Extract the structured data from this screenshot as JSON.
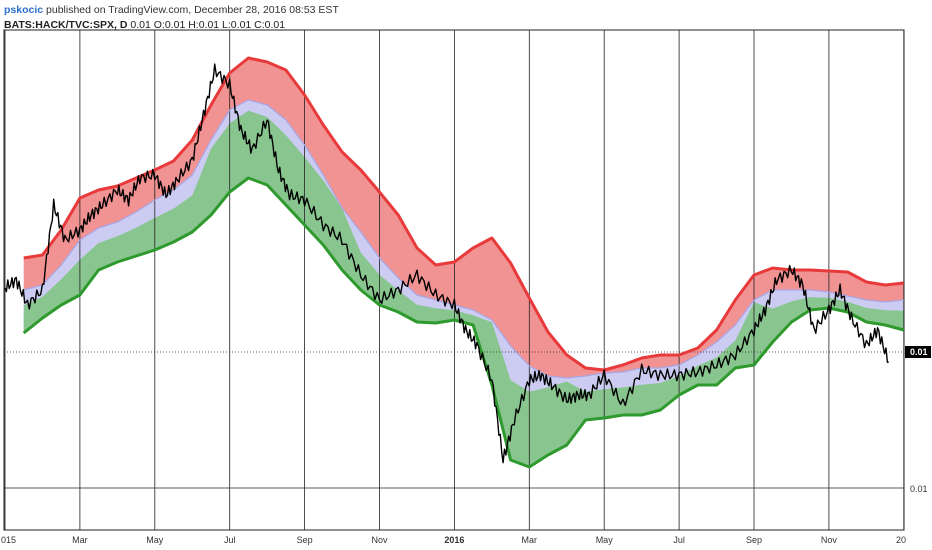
{
  "header": {
    "author": "pskocic",
    "published_text": "published on TradingView.com, December 28, 2016 08:53 EST",
    "symbol": "BATS:HACK/TVC:SPX, D",
    "values": "0.01 O:0.01 H:0.01 L:0.01 C:0.01"
  },
  "colors": {
    "upper_band": "#f08080",
    "middle_band": "#c7c7f2",
    "lower_band": "#7cc47c",
    "red_line": "#e83a3a",
    "green_line": "#2e9a2e",
    "blue_line": "#a7a7e8",
    "price_line": "#000000"
  },
  "chart_data": {
    "type": "line",
    "x_tick_labels": [
      {
        "label": "015",
        "month": 0
      },
      {
        "label": "Mar",
        "month": 2
      },
      {
        "label": "May",
        "month": 4
      },
      {
        "label": "Jul",
        "month": 6
      },
      {
        "label": "Sep",
        "month": 8
      },
      {
        "label": "Nov",
        "month": 10
      },
      {
        "label": "2016",
        "month": 12
      },
      {
        "label": "Mar",
        "month": 14
      },
      {
        "label": "May",
        "month": 16
      },
      {
        "label": "Jul",
        "month": 18
      },
      {
        "label": "Sep",
        "month": 20
      },
      {
        "label": "Nov",
        "month": 22
      },
      {
        "label": "20",
        "month": 24
      }
    ],
    "y_tick_labels": [
      "0.01"
    ],
    "last_price_label": "0.01",
    "x_unit": "months since Jan 2015",
    "bands": {
      "x": [
        0.5,
        1,
        1.5,
        2,
        2.5,
        3,
        3.5,
        4,
        4.5,
        5,
        5.5,
        6,
        6.5,
        7,
        7.5,
        8,
        8.5,
        9,
        9.5,
        10,
        10.5,
        11,
        11.5,
        12,
        12.5,
        13,
        13.5,
        14,
        14.5,
        15,
        15.5,
        16,
        16.5,
        17,
        17.5,
        18,
        18.5,
        19,
        19.5,
        20,
        20.5,
        21,
        21.5,
        22,
        22.5,
        23,
        23.5,
        24
      ],
      "red": [
        258,
        255,
        230,
        198,
        190,
        186,
        178,
        170,
        161,
        140,
        105,
        73,
        58,
        62,
        70,
        95,
        125,
        152,
        170,
        192,
        215,
        248,
        265,
        262,
        248,
        238,
        263,
        298,
        332,
        355,
        368,
        370,
        365,
        358,
        355,
        355,
        348,
        330,
        300,
        275,
        268,
        270,
        270,
        271,
        272,
        282,
        285,
        283
      ],
      "blue": [
        290,
        285,
        265,
        240,
        228,
        222,
        212,
        200,
        190,
        175,
        140,
        110,
        100,
        105,
        120,
        145,
        175,
        208,
        232,
        258,
        278,
        295,
        300,
        305,
        310,
        320,
        346,
        366,
        376,
        378,
        376,
        373,
        372,
        368,
        368,
        365,
        355,
        342,
        325,
        300,
        290,
        290,
        290,
        292,
        296,
        300,
        302,
        300
      ],
      "green": [
        333,
        318,
        305,
        295,
        270,
        262,
        256,
        250,
        242,
        232,
        215,
        192,
        178,
        185,
        205,
        225,
        245,
        270,
        290,
        305,
        312,
        322,
        323,
        320,
        325,
        385,
        460,
        467,
        455,
        445,
        420,
        418,
        415,
        415,
        410,
        395,
        385,
        385,
        368,
        365,
        342,
        322,
        310,
        308,
        312,
        322,
        325,
        330
      ]
    },
    "price": {
      "x": [
        0,
        0.3,
        0.6,
        1,
        1.3,
        1.6,
        2,
        2.3,
        2.6,
        3,
        3.3,
        3.6,
        4,
        4.3,
        4.6,
        5,
        5.3,
        5.6,
        6,
        6.3,
        6.6,
        7,
        7.3,
        7.6,
        8,
        8.5,
        9,
        9.5,
        10,
        10.5,
        11,
        11.5,
        12,
        12.3,
        12.6,
        13,
        13.3,
        13.6,
        14,
        14.3,
        14.6,
        15,
        15.3,
        15.6,
        16,
        16.5,
        17,
        17.5,
        18,
        18.5,
        19,
        19.5,
        20,
        20.3,
        20.6,
        21,
        21.3,
        21.6,
        22,
        22.3,
        22.6,
        23,
        23.3,
        23.6
      ],
      "y": [
        288,
        280,
        305,
        290,
        205,
        240,
        230,
        215,
        205,
        190,
        200,
        178,
        175,
        195,
        180,
        160,
        115,
        70,
        85,
        130,
        150,
        120,
        170,
        195,
        200,
        225,
        240,
        275,
        300,
        290,
        275,
        295,
        305,
        330,
        345,
        380,
        460,
        420,
        380,
        375,
        385,
        400,
        395,
        395,
        375,
        405,
        370,
        375,
        375,
        372,
        365,
        355,
        330,
        310,
        280,
        270,
        285,
        330,
        310,
        290,
        318,
        345,
        330,
        362
      ]
    }
  }
}
